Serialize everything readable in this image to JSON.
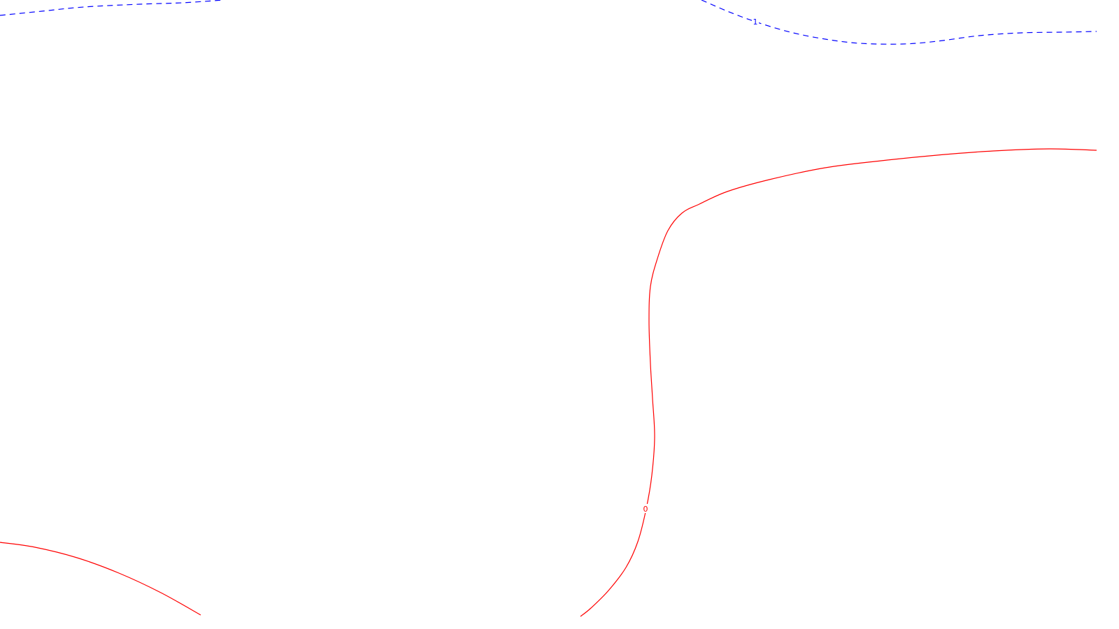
{
  "chart_data": {
    "type": "contour",
    "title": "",
    "xlabel": "",
    "ylabel": "",
    "grid": false,
    "legend": "none",
    "levels": [
      {
        "level_label": "1",
        "color": "#0000ff",
        "style": "dashed",
        "segments": [
          {
            "name": "contour-1-left",
            "points": [
              [
                0,
                22
              ],
              [
                60,
                16
              ],
              [
                120,
                10
              ],
              [
                200,
                6
              ],
              [
                260,
                4
              ],
              [
                320,
                0
              ]
            ]
          },
          {
            "name": "contour-1-right",
            "points": [
              [
                1003,
                0
              ],
              [
                1040,
                16
              ],
              [
                1080,
                31
              ],
              [
                1130,
                46
              ],
              [
                1180,
                56
              ],
              [
                1230,
                62
              ],
              [
                1290,
                63
              ],
              [
                1340,
                59
              ],
              [
                1400,
                51
              ],
              [
                1460,
                47
              ],
              [
                1520,
                46
              ],
              [
                1568,
                45
              ]
            ]
          }
        ],
        "label_anchor": [
          1080,
          31
        ]
      },
      {
        "level_label": "0",
        "color": "#ff0000",
        "style": "solid",
        "segments": [
          {
            "name": "contour-0-right",
            "points": [
              [
                1568,
                215
              ],
              [
                1500,
                213
              ],
              [
                1420,
                216
              ],
              [
                1340,
                222
              ],
              [
                1260,
                230
              ],
              [
                1180,
                240
              ],
              [
                1100,
                257
              ],
              [
                1040,
                274
              ],
              [
                1000,
                292
              ],
              [
                975,
                305
              ],
              [
                955,
                330
              ],
              [
                940,
                370
              ],
              [
                930,
                410
              ],
              [
                928,
                460
              ],
              [
                930,
                520
              ],
              [
                933,
                570
              ],
              [
                936,
                625
              ],
              [
                932,
                680
              ],
              [
                924,
                728
              ],
              [
                912,
                775
              ],
              [
                895,
                812
              ],
              [
                870,
                845
              ],
              [
                845,
                870
              ],
              [
                830,
                882
              ]
            ]
          },
          {
            "name": "contour-0-left",
            "points": [
              [
                0,
                776
              ],
              [
                50,
                783
              ],
              [
                110,
                798
              ],
              [
                170,
                820
              ],
              [
                230,
                848
              ],
              [
                287,
                880
              ]
            ]
          }
        ],
        "label_anchor": [
          923,
          728
        ]
      }
    ]
  }
}
